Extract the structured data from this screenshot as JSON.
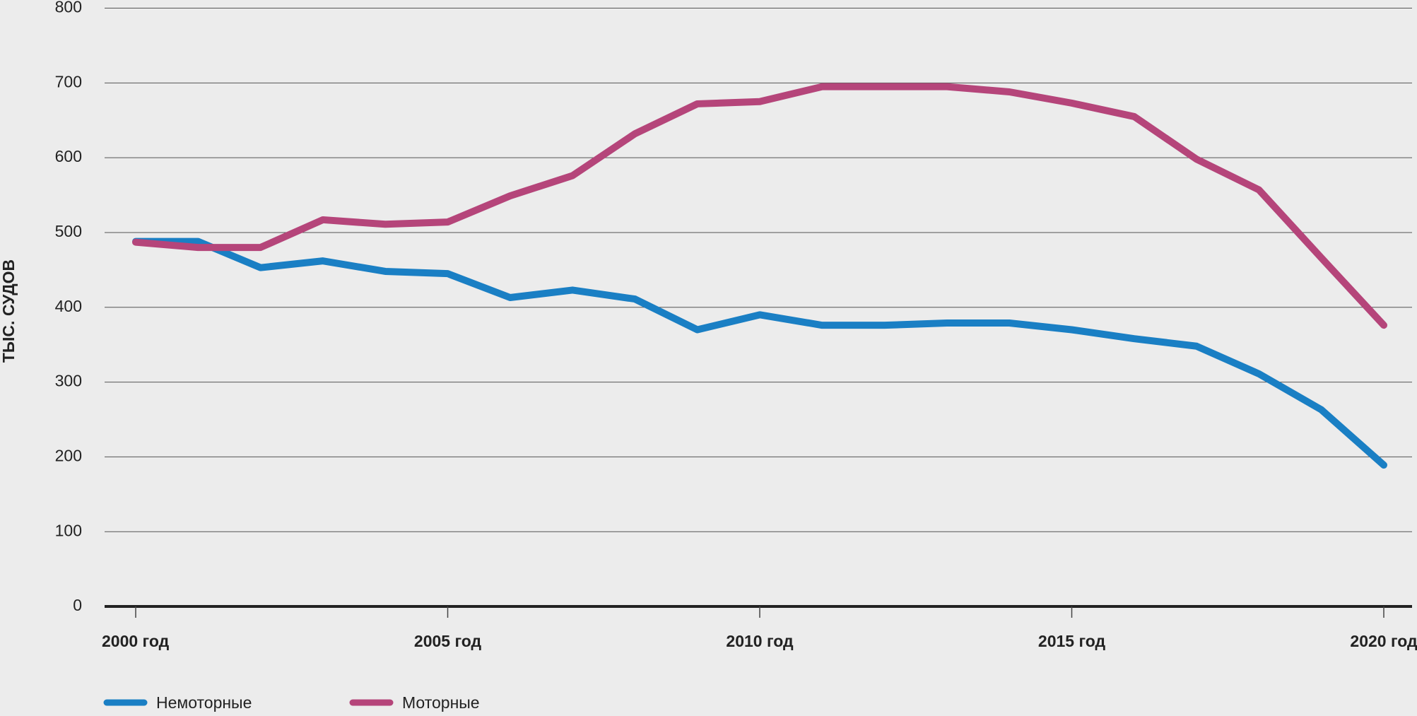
{
  "chart_data": {
    "type": "line",
    "y_label": "ТЫС. СУДОВ",
    "x": [
      2000,
      2001,
      2002,
      2003,
      2004,
      2005,
      2006,
      2007,
      2008,
      2009,
      2010,
      2011,
      2012,
      2013,
      2014,
      2015,
      2016,
      2017,
      2018,
      2019,
      2020
    ],
    "series": [
      {
        "name": "Немоторные",
        "color": "#1a7fc4",
        "values": [
          488,
          488,
          453,
          462,
          448,
          445,
          413,
          423,
          411,
          370,
          390,
          376,
          376,
          379,
          379,
          370,
          358,
          348,
          311,
          263,
          189
        ]
      },
      {
        "name": "Моторные",
        "color": "#b5457a",
        "values": [
          487,
          480,
          480,
          517,
          511,
          514,
          549,
          576,
          632,
          672,
          675,
          695,
          695,
          695,
          688,
          673,
          655,
          598,
          557,
          466,
          376
        ]
      }
    ],
    "xlim": [
      2000,
      2020
    ],
    "xticks": [
      {
        "value": 2000,
        "label": "2000 год"
      },
      {
        "value": 2005,
        "label": "2005 год"
      },
      {
        "value": 2010,
        "label": "2010 год"
      },
      {
        "value": 2015,
        "label": "2015 год"
      },
      {
        "value": 2020,
        "label": "2020 год"
      }
    ],
    "ylim": [
      0,
      800
    ],
    "yticks": [
      0,
      100,
      200,
      300,
      400,
      500,
      600,
      700,
      800
    ],
    "grid": true,
    "legend": "bottom"
  }
}
